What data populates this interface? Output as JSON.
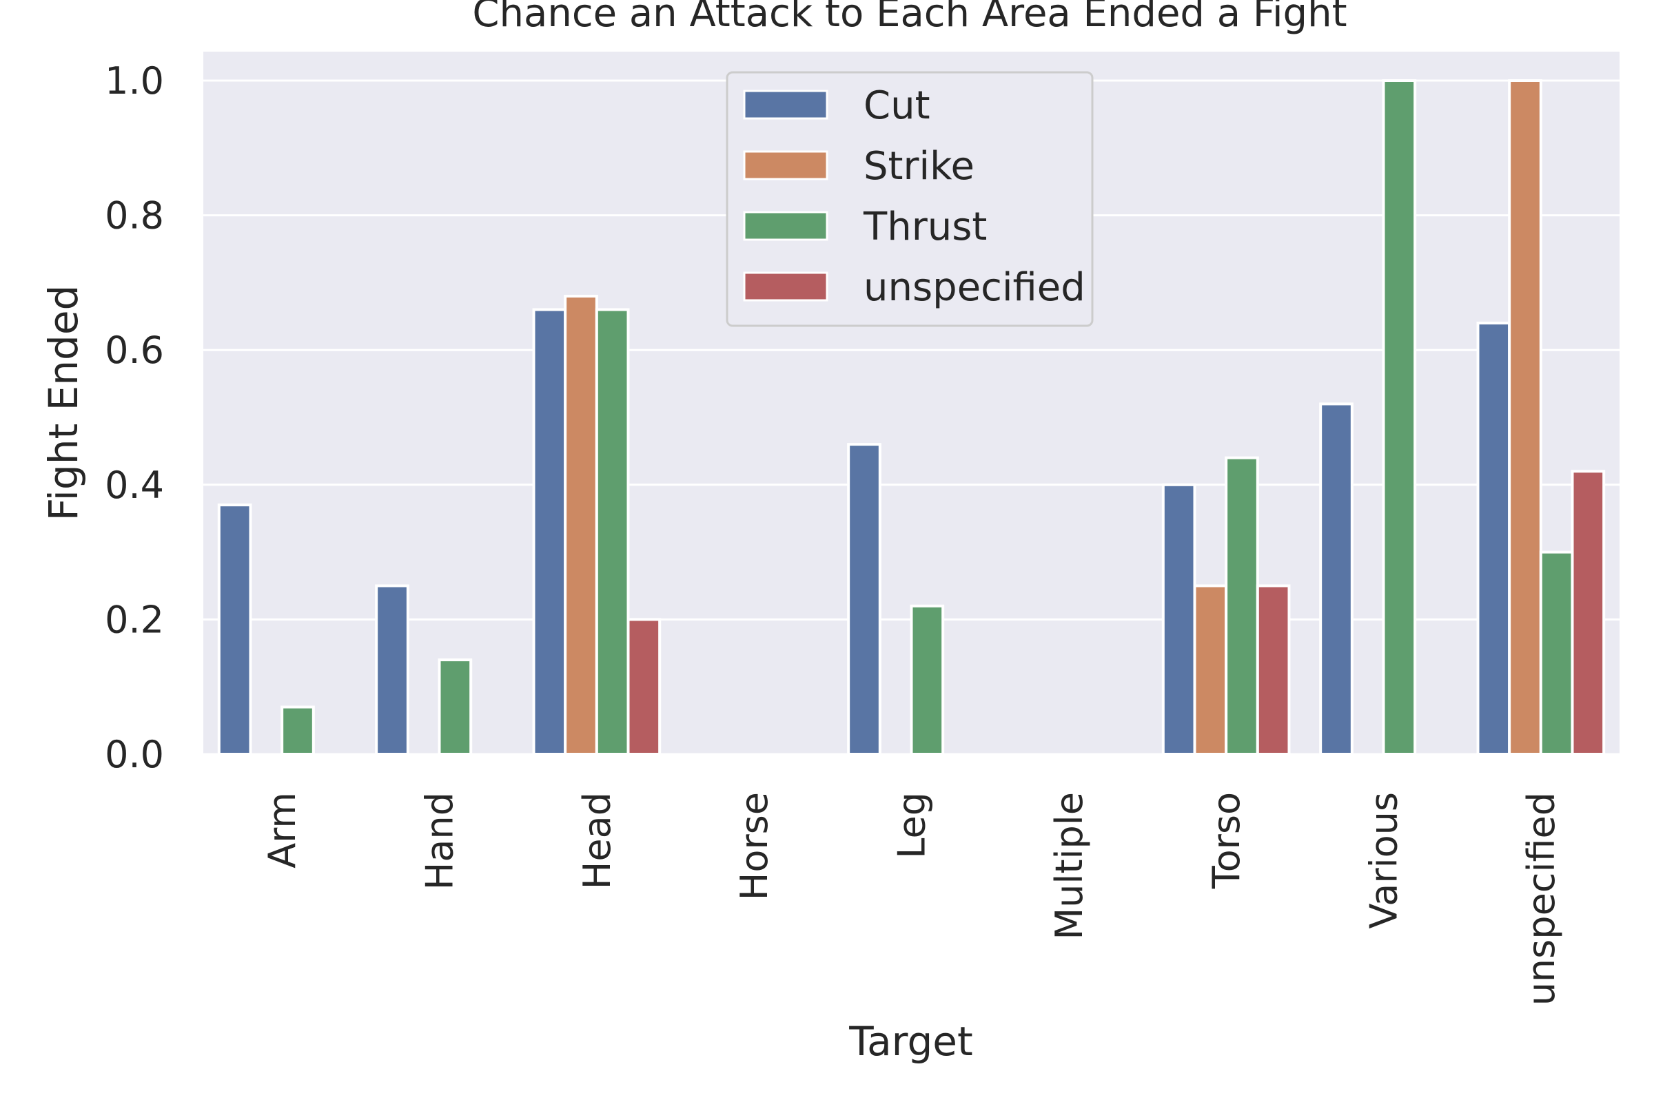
{
  "chart_data": {
    "type": "bar",
    "title": "Chance an Attack to Each Area Ended a Fight",
    "xlabel": "Target",
    "ylabel": "Fight Ended",
    "ylim": [
      0,
      1.05
    ],
    "yticks": [
      "0.0",
      "0.2",
      "0.4",
      "0.6",
      "0.8",
      "1.0"
    ],
    "ytick_values": [
      0,
      0.2,
      0.4,
      0.6,
      0.8,
      1.0
    ],
    "grid": true,
    "legend_position": "top-center",
    "categories": [
      "Arm",
      "Hand",
      "Head",
      "Horse",
      "Leg",
      "Multiple",
      "Torso",
      "Various",
      "unspecified"
    ],
    "series": [
      {
        "name": "Cut",
        "color": "#5975a4",
        "values": [
          0.37,
          0.25,
          0.66,
          null,
          0.46,
          null,
          0.4,
          0.52,
          0.64
        ]
      },
      {
        "name": "Strike",
        "color": "#cc8963",
        "values": [
          null,
          null,
          0.68,
          null,
          null,
          null,
          0.25,
          null,
          1.0
        ]
      },
      {
        "name": "Thrust",
        "color": "#5f9e6e",
        "values": [
          0.07,
          0.14,
          0.66,
          null,
          0.22,
          null,
          0.44,
          1.0,
          0.3
        ]
      },
      {
        "name": "unspecified",
        "color": "#b55d60",
        "values": [
          null,
          null,
          0.2,
          null,
          null,
          null,
          0.25,
          null,
          0.42
        ]
      }
    ]
  }
}
